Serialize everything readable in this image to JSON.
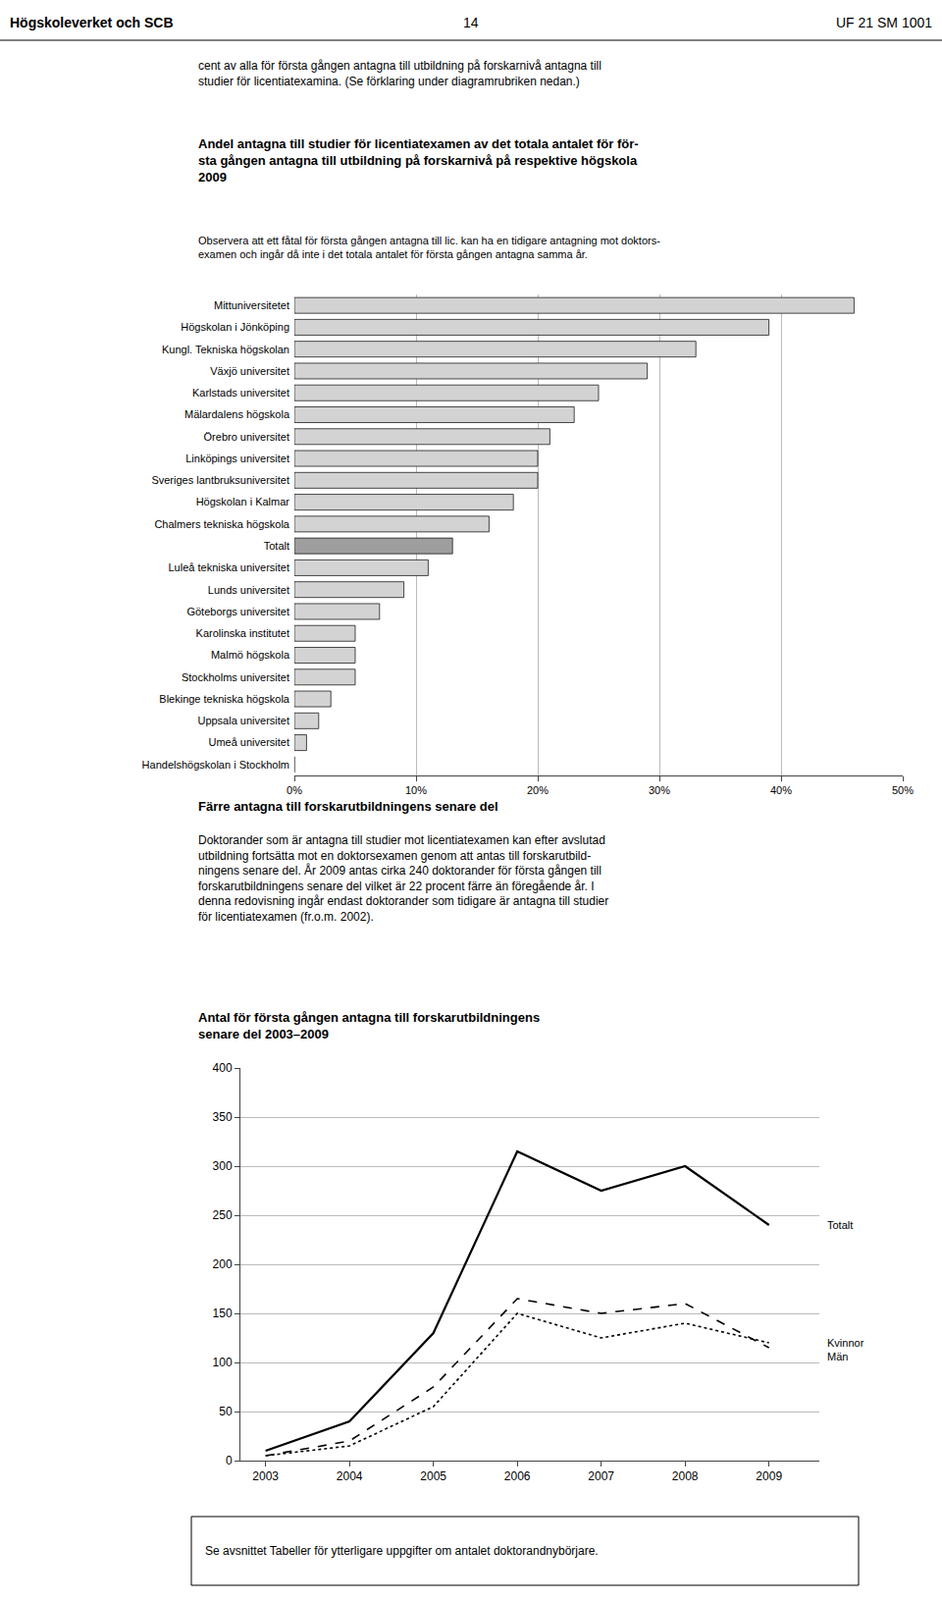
{
  "chart_data": [
    {
      "type": "bar",
      "orientation": "horizontal",
      "title": "Andel antagna till studier för licentiatexamen av det totala antalet för för-\nsta gången antagna till utbildning på forskarnivå på respektive högskola\n2009",
      "subtitle": "Observera att ett fåtal för första gången antagna till lic. kan ha en tidigare antagning mot doktors-\nexamen och ingår då inte i det totala antalet för första gången antagna samma år.",
      "annotations": [
        "Högskoleverket och SCB",
        "14",
        "UF 21 SM 1001",
        "cent av alla för första gången antagna till utbildning på forskarnivå antagna till\nstudier för licentiatexamina. (Se förklaring under diagramrubriken nedan.)"
      ],
      "categories": [
        "Mittuniversitetet",
        "Högskolan i Jönköping",
        "Kungl. Tekniska högskolan",
        "Växjö universitet",
        "Karlstads universitet",
        "Mälardalens högskola",
        "Örebro universitet",
        "Linköpings universitet",
        "Sveriges lantbruksuniversitet",
        "Högskolan i Kalmar",
        "Chalmers tekniska högskola",
        "Totalt",
        "Luleå tekniska universitet",
        "Lunds universitet",
        "Göteborgs universitet",
        "Karolinska institutet",
        "Malmö högskola",
        "Stockholms universitet",
        "Blekinge tekniska högskola",
        "Uppsala universitet",
        "Umeå universitet",
        "Handelshögskolan i Stockholm"
      ],
      "values": [
        46,
        39,
        33,
        29,
        25,
        23,
        21,
        20,
        20,
        18,
        16,
        13,
        11,
        9,
        7,
        5,
        5,
        5,
        3,
        2,
        1,
        0
      ],
      "colors": [
        "#d3d3d3",
        "#d3d3d3",
        "#d3d3d3",
        "#d3d3d3",
        "#d3d3d3",
        "#d3d3d3",
        "#d3d3d3",
        "#d3d3d3",
        "#d3d3d3",
        "#d3d3d3",
        "#d3d3d3",
        "#9e9e9e",
        "#d3d3d3",
        "#d3d3d3",
        "#d3d3d3",
        "#d3d3d3",
        "#d3d3d3",
        "#d3d3d3",
        "#d3d3d3",
        "#d3d3d3",
        "#d3d3d3",
        "#d3d3d3"
      ],
      "xlim": [
        0,
        50
      ],
      "xticks": [
        {
          "value": 0,
          "label": "0%"
        },
        {
          "value": 10,
          "label": "10%"
        },
        {
          "value": 20,
          "label": "20%"
        },
        {
          "value": 30,
          "label": "30%"
        },
        {
          "value": 40,
          "label": "40%"
        },
        {
          "value": 50,
          "label": "50%"
        }
      ],
      "grid": true
    },
    {
      "type": "line",
      "title": "Antal för första gången antagna till forskarutbildningens\nsenare del 2003–2009",
      "annotations": [
        "Färre antagna till forskarutbildningens senare del",
        "Doktorander som är antagna till studier mot licentiatexamen kan efter avslutad\nutbildning fortsätta mot en doktorsexamen genom att antas till forskarutbild-\nningens senare del. År 2009 antas cirka 240 doktorander för första gången till\nforskarutbildningens senare del vilket är 22 procent färre än föregående år. I\ndenna redovisning ingår endast doktorander som tidigare är antagna till studier\nför licentiatexamen (fr.o.m. 2002).",
        "Se avsnittet Tabeller för ytterligare uppgifter om antalet doktorandnybörjare."
      ],
      "x": [
        2003,
        2004,
        2005,
        2006,
        2007,
        2008,
        2009
      ],
      "series": [
        {
          "name": "Totalt",
          "color": "#000000",
          "line_style": "solid",
          "values": [
            10,
            40,
            130,
            315,
            275,
            300,
            240
          ]
        },
        {
          "name": "Män",
          "color": "#000000",
          "line_style": "dashed",
          "values": [
            5,
            20,
            75,
            165,
            150,
            160,
            115
          ]
        },
        {
          "name": "Kvinnor",
          "color": "#000000",
          "line_style": "dotted",
          "values": [
            5,
            15,
            55,
            150,
            125,
            140,
            120
          ]
        }
      ],
      "xlim": [
        2002.7,
        2009.6
      ],
      "xticks": [
        2003,
        2004,
        2005,
        2006,
        2007,
        2008,
        2009
      ],
      "ylim": [
        0,
        400
      ],
      "yticks": [
        0,
        50,
        100,
        150,
        200,
        250,
        300,
        350,
        400
      ],
      "grid": true
    }
  ]
}
